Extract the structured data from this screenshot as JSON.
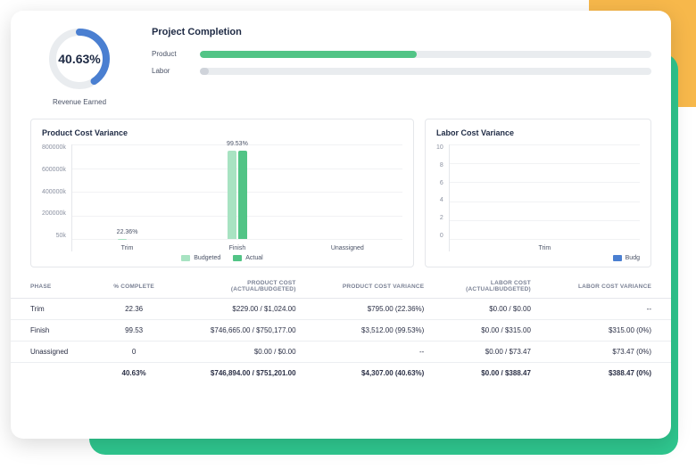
{
  "colors": {
    "green": "#52c486",
    "green_dark": "#3aa56b",
    "blue": "#4a7fd1",
    "track": "#e9ecef",
    "grid": "#f1f2f4",
    "text": "#2a2f45",
    "muted": "#8a90a0"
  },
  "gauge": {
    "value": "40.63%",
    "percent": 40.63,
    "caption": "Revenue Earned"
  },
  "completion": {
    "title": "Project Completion",
    "rows": [
      {
        "label": "Product",
        "percent": 48,
        "color": "#52c486"
      },
      {
        "label": "Labor",
        "percent": 2,
        "color": "#cfd3da"
      }
    ]
  },
  "product_chart": {
    "title": "Product Cost Variance",
    "type": "bar",
    "yticks": [
      "800000k",
      "600000k",
      "400000k",
      "200000k",
      "50k"
    ],
    "ylim_max": 800000,
    "categories": [
      "Trim",
      "Finish",
      "Unassigned"
    ],
    "series": [
      {
        "name": "Budgeted",
        "color": "#a8e3c2"
      },
      {
        "name": "Actual",
        "color": "#52c486"
      }
    ],
    "bars": [
      {
        "pct_label": "22.36%",
        "budgeted": 1024,
        "actual": 229
      },
      {
        "pct_label": "99.53%",
        "budgeted": 750177,
        "actual": 746665
      },
      {
        "pct_label": "",
        "budgeted": 0,
        "actual": 0
      }
    ],
    "legend": [
      "Budgeted",
      "Actual"
    ]
  },
  "labor_chart": {
    "title": "Labor Cost Variance",
    "type": "bar",
    "yticks": [
      "10",
      "8",
      "6",
      "4",
      "2",
      "0"
    ],
    "categories": [
      "Trim"
    ],
    "legend_partial": "Budg",
    "series_color": "#4a7fd1"
  },
  "table": {
    "columns": [
      "PHASE",
      "% COMPLETE",
      "PRODUCT COST (ACTUAL/BUDGETED)",
      "PRODUCT COST VARIANCE",
      "LABOR COST (ACTUAL/BUDGETED)",
      "LABOR COST VARIANCE"
    ],
    "rows": [
      [
        "Trim",
        "22.36",
        "$229.00 / $1,024.00",
        "$795.00 (22.36%)",
        "$0.00 / $0.00",
        "--"
      ],
      [
        "Finish",
        "99.53",
        "$746,665.00 / $750,177.00",
        "$3,512.00 (99.53%)",
        "$0.00 / $315.00",
        "$315.00 (0%)"
      ],
      [
        "Unassigned",
        "0",
        "$0.00 / $0.00",
        "--",
        "$0.00 / $73.47",
        "$73.47 (0%)"
      ]
    ],
    "total": [
      "",
      "40.63%",
      "$746,894.00 / $751,201.00",
      "$4,307.00 (40.63%)",
      "$0.00 / $388.47",
      "$388.47 (0%)"
    ]
  }
}
